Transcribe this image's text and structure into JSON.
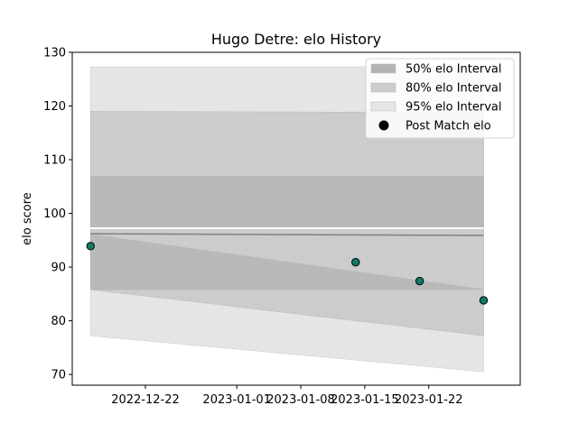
{
  "chart_data": {
    "type": "line",
    "title": "Hugo Detre: elo History",
    "xlabel": "",
    "ylabel": "elo score",
    "xlim": [
      "2022-12-14",
      "2023-02-01"
    ],
    "ylim": [
      68,
      130
    ],
    "x_ticks": [
      "2022-12-22",
      "2023-01-01",
      "2023-01-08",
      "2023-01-15",
      "2023-01-22"
    ],
    "y_ticks": [
      70,
      80,
      90,
      100,
      110,
      120,
      130
    ],
    "grid": false,
    "legend_position": "top-right",
    "legend": [
      {
        "label": "50% elo Interval",
        "color": "#b3b3b3"
      },
      {
        "label": "80% elo Interval",
        "color": "#cccccc"
      },
      {
        "label": "95% elo Interval",
        "color": "#e5e5e5"
      },
      {
        "label": "Post Match elo",
        "color": "#000000"
      }
    ],
    "colors": {
      "band_50": "#b3b3b3",
      "band_80": "#cccccc",
      "band_95": "#e5e5e5",
      "mean_line": "#808080",
      "marker_fill": "#117a65",
      "marker_edge": "#000000"
    },
    "band_x": [
      "2022-12-16",
      "2023-01-28"
    ],
    "bands": {
      "upper": [
        {
          "level": "95%",
          "y": [
            127.3,
            127.3
          ]
        },
        {
          "level": "80%",
          "y": [
            119.0,
            118.8
          ]
        },
        {
          "level": "50%",
          "y": [
            106.9,
            106.9
          ]
        }
      ],
      "lower": [
        {
          "level": "50%",
          "y": [
            96.1,
            85.8
          ]
        },
        {
          "level": "80%",
          "y": [
            85.8,
            77.2
          ]
        },
        {
          "level": "95%",
          "y": [
            77.2,
            70.5
          ]
        }
      ],
      "upper_50_bottom": [
        97.4,
        97.4
      ]
    },
    "mean_line": {
      "x": [
        "2022-12-16",
        "2023-01-28"
      ],
      "y": [
        96.2,
        95.9
      ]
    },
    "series": [
      {
        "name": "Post Match elo",
        "x": [
          "2022-12-16",
          "2023-01-14",
          "2023-01-21",
          "2023-01-28"
        ],
        "y": [
          93.9,
          90.9,
          87.4,
          83.8
        ]
      }
    ]
  }
}
